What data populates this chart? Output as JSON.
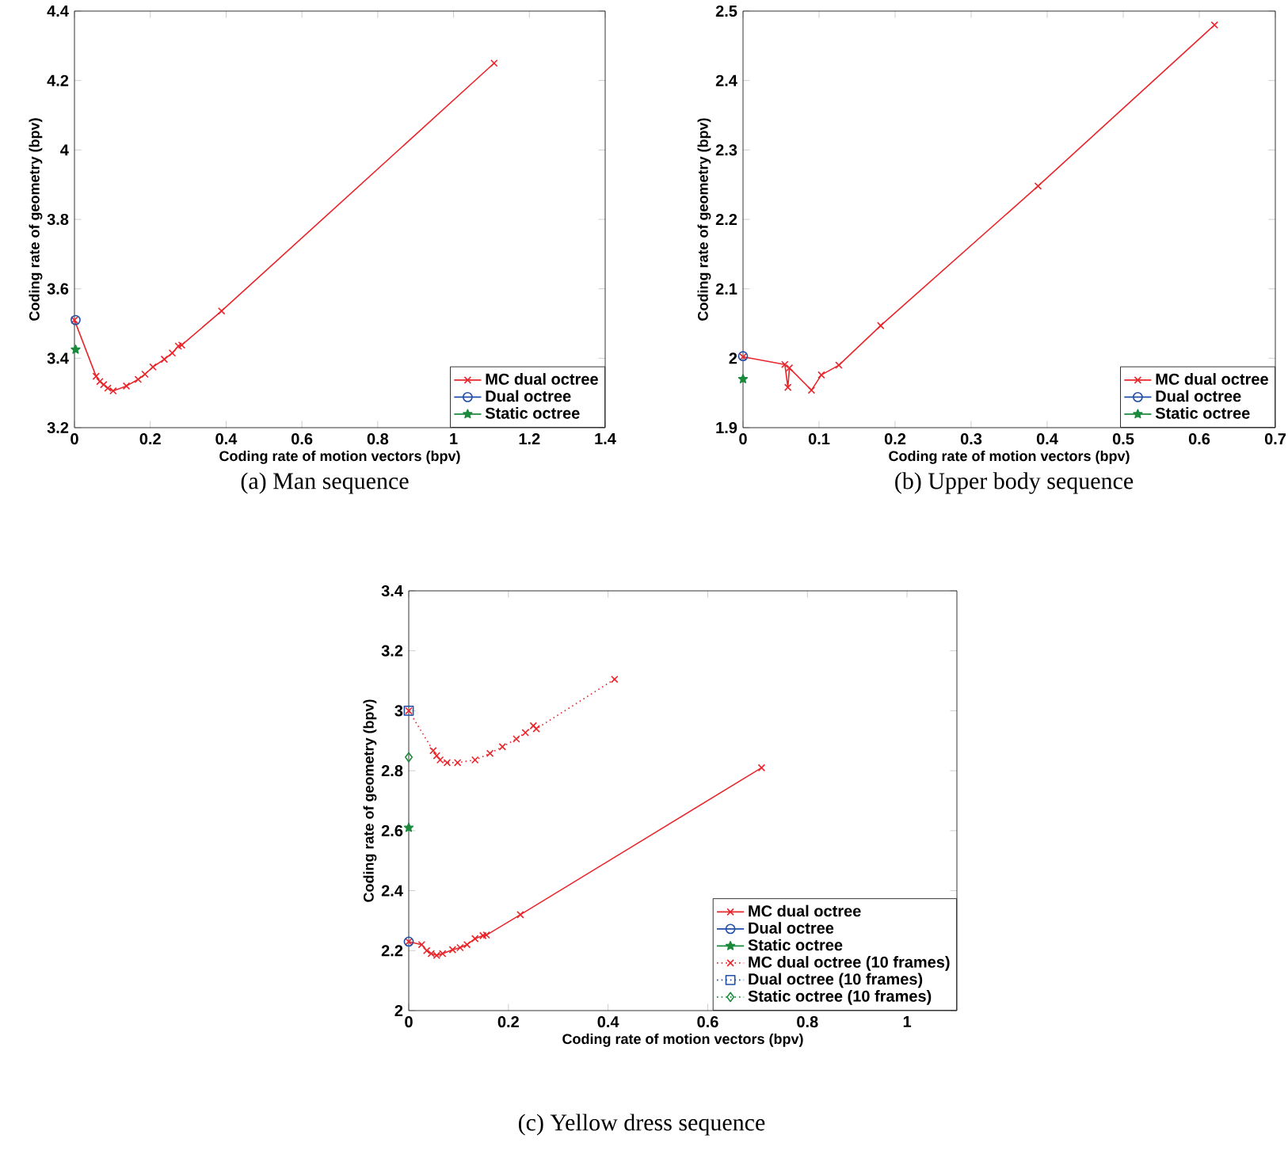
{
  "chart_data": [
    {
      "type": "line",
      "subtitle": "(a) Man sequence",
      "xlabel": "Coding rate of motion vectors (bpv)",
      "ylabel": "Coding rate of geometry (bpv)",
      "xlim": [
        0,
        1.4
      ],
      "ylim": [
        3.2,
        4.4
      ],
      "xticks": [
        0,
        0.2,
        0.4,
        0.6,
        0.8,
        1,
        1.2,
        1.4
      ],
      "yticks": [
        3.2,
        3.4,
        3.6,
        3.8,
        4,
        4.2,
        4.4
      ],
      "legend": "bottom right",
      "grid": false,
      "series": [
        {
          "name": "MC dual octree",
          "color": "#e8262b",
          "marker": "cross",
          "line_style": "solid",
          "x": [
            0.0,
            0.057,
            0.067,
            0.077,
            0.088,
            0.102,
            0.137,
            0.168,
            0.186,
            0.207,
            0.237,
            0.258,
            0.274,
            0.283,
            0.388,
            1.107
          ],
          "values": [
            3.51,
            3.348,
            3.333,
            3.324,
            3.314,
            3.306,
            3.32,
            3.339,
            3.354,
            3.375,
            3.397,
            3.415,
            3.435,
            3.438,
            3.536,
            4.25
          ]
        },
        {
          "name": "Dual octree",
          "color": "#1f4fa8",
          "marker": "circle",
          "line_style": "solid",
          "x": [
            0.003
          ],
          "values": [
            3.51
          ]
        },
        {
          "name": "Static octree",
          "color": "#1a8a3c",
          "marker": "star",
          "line_style": "solid",
          "x": [
            0.003
          ],
          "values": [
            3.425
          ]
        }
      ]
    },
    {
      "type": "line",
      "subtitle": "(b) Upper body sequence",
      "xlabel": "Coding rate of motion vectors (bpv)",
      "ylabel": "Coding rate of geometry (bpv)",
      "xlim": [
        0,
        0.7
      ],
      "ylim": [
        1.9,
        2.5
      ],
      "xticks": [
        0,
        0.1,
        0.2,
        0.3,
        0.4,
        0.5,
        0.6,
        0.7
      ],
      "yticks": [
        1.9,
        2,
        2.1,
        2.2,
        2.3,
        2.4,
        2.5
      ],
      "legend": "bottom right",
      "grid": false,
      "series": [
        {
          "name": "MC dual octree",
          "color": "#e8262b",
          "marker": "cross",
          "line_style": "solid",
          "x": [
            0.0,
            0.055,
            0.059,
            0.061,
            0.09,
            0.103,
            0.126,
            0.181,
            0.388,
            0.62
          ],
          "values": [
            2.002,
            1.991,
            1.958,
            1.986,
            1.954,
            1.976,
            1.99,
            2.047,
            2.248,
            2.48
          ]
        },
        {
          "name": "Dual octree",
          "color": "#1f4fa8",
          "marker": "circle",
          "line_style": "solid",
          "x": [
            0.0
          ],
          "values": [
            2.003
          ]
        },
        {
          "name": "Static octree",
          "color": "#1a8a3c",
          "marker": "star",
          "line_style": "solid",
          "x": [
            0.0
          ],
          "values": [
            1.97
          ]
        }
      ]
    },
    {
      "type": "line",
      "subtitle": "(c) Yellow dress sequence",
      "xlabel": "Coding rate of motion vectors (bpv)",
      "ylabel": "Coding rate of geometry (bpv)",
      "xlim": [
        0,
        1.1
      ],
      "ylim": [
        2,
        3.4
      ],
      "xticks": [
        0,
        0.2,
        0.4,
        0.6,
        0.8,
        1
      ],
      "yticks": [
        2,
        2.2,
        2.4,
        2.6,
        2.8,
        3,
        3.2,
        3.4
      ],
      "legend": "bottom right",
      "grid": false,
      "series": [
        {
          "name": "MC dual octree",
          "color": "#e8262b",
          "marker": "cross",
          "line_style": "solid",
          "x": [
            0.0,
            0.026,
            0.036,
            0.045,
            0.056,
            0.068,
            0.088,
            0.103,
            0.117,
            0.133,
            0.149,
            0.156,
            0.224,
            0.708
          ],
          "values": [
            2.23,
            2.22,
            2.2,
            2.19,
            2.184,
            2.19,
            2.203,
            2.21,
            2.22,
            2.24,
            2.25,
            2.252,
            2.32,
            2.81
          ]
        },
        {
          "name": "Dual octree",
          "color": "#1f4fa8",
          "marker": "circle",
          "line_style": "solid",
          "x": [
            0.0
          ],
          "values": [
            2.23
          ]
        },
        {
          "name": "Static octree",
          "color": "#1a8a3c",
          "marker": "star",
          "line_style": "solid",
          "x": [
            0.0
          ],
          "values": [
            2.61
          ]
        },
        {
          "name": "MC dual octree  (10 frames)",
          "color": "#e8262b",
          "marker": "cross",
          "line_style": "dotted",
          "x": [
            0.0,
            0.049,
            0.056,
            0.063,
            0.077,
            0.098,
            0.133,
            0.163,
            0.188,
            0.216,
            0.234,
            0.25,
            0.256,
            0.413
          ],
          "values": [
            3.0,
            2.867,
            2.85,
            2.836,
            2.827,
            2.827,
            2.836,
            2.858,
            2.88,
            2.906,
            2.927,
            2.95,
            2.94,
            3.105
          ]
        },
        {
          "name": "Dual octree (10 frames)",
          "color": "#1f4fa8",
          "marker": "square",
          "line_style": "dotted",
          "x": [
            0.0
          ],
          "values": [
            3.0
          ]
        },
        {
          "name": "Static octree (10 frames)",
          "color": "#1a8a3c",
          "marker": "diamond",
          "line_style": "dotted",
          "x": [
            0.0
          ],
          "values": [
            2.845
          ]
        }
      ]
    }
  ]
}
